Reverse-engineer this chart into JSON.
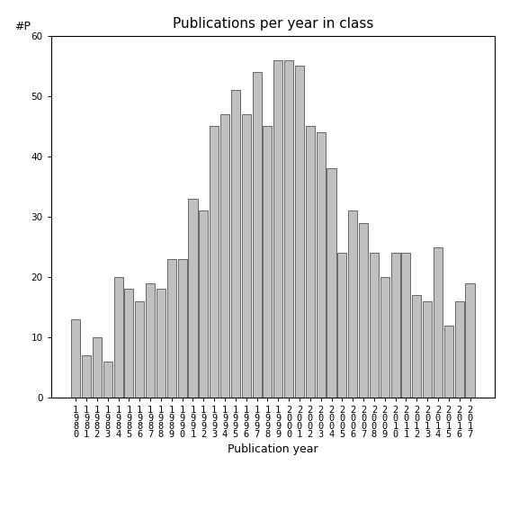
{
  "years": [
    1980,
    1981,
    1982,
    1983,
    1984,
    1985,
    1986,
    1987,
    1988,
    1989,
    1990,
    1991,
    1992,
    1993,
    1994,
    1995,
    1996,
    1997,
    1998,
    1999,
    2000,
    2001,
    2002,
    2003,
    2004,
    2005,
    2006,
    2007,
    2008,
    2009,
    2010,
    2011,
    2012,
    2013,
    2014,
    2015,
    2016,
    2017
  ],
  "values": [
    13,
    7,
    10,
    6,
    20,
    18,
    16,
    19,
    18,
    23,
    23,
    33,
    31,
    45,
    47,
    51,
    47,
    54,
    45,
    56,
    56,
    55,
    45,
    44,
    38,
    24,
    31,
    29,
    24,
    20,
    24,
    24,
    17,
    16,
    25,
    12,
    16,
    19
  ],
  "bar_color": "#c0c0c0",
  "bar_edgecolor": "#555555",
  "title": "Publications per year in class",
  "xlabel": "Publication year",
  "ylabel": "#P",
  "ylim": [
    0,
    60
  ],
  "yticks": [
    0,
    10,
    20,
    30,
    40,
    50,
    60
  ],
  "title_fontsize": 11,
  "label_fontsize": 9,
  "tick_fontsize": 7.5,
  "background_color": "#ffffff"
}
